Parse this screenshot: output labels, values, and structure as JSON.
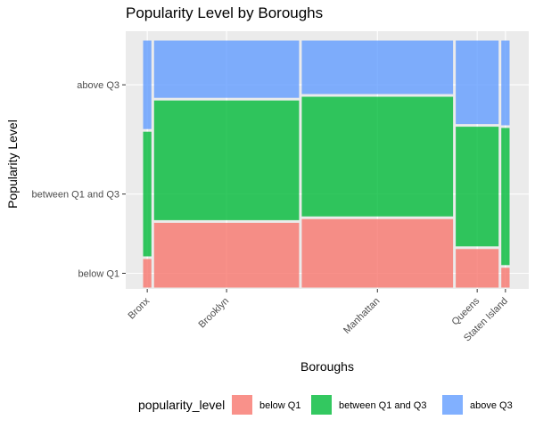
{
  "chart_data": {
    "type": "mosaic",
    "title": "Popularity Level by Boroughs",
    "xlabel": "Boroughs",
    "ylabel": "Popularity Level",
    "categories": [
      "Bronx",
      "Brooklyn",
      "Manhattan",
      "Queens",
      "Staten Island"
    ],
    "levels": [
      "below Q1",
      "between Q1 and Q3",
      "above Q3"
    ],
    "column_widths": [
      0.0297,
      0.4001,
      0.4171,
      0.1234,
      0.0297
    ],
    "series": [
      {
        "name": "below Q1",
        "values": [
          0.125,
          0.27,
          0.285,
          0.165,
          0.09
        ]
      },
      {
        "name": "between Q1 and Q3",
        "values": [
          0.51,
          0.49,
          0.49,
          0.49,
          0.56
        ]
      },
      {
        "name": "above Q3",
        "values": [
          0.365,
          0.24,
          0.225,
          0.345,
          0.35
        ]
      }
    ],
    "legend": {
      "title": "popularity_level",
      "position": "bottom",
      "items": [
        "below Q1",
        "between Q1 and Q3",
        "above Q3"
      ]
    },
    "colors": {
      "below Q1": "#f8766d",
      "between Q1 and Q3": "#00ba38",
      "above Q3": "#619cff"
    },
    "panel_background": "#ebebeb",
    "grid": true
  }
}
